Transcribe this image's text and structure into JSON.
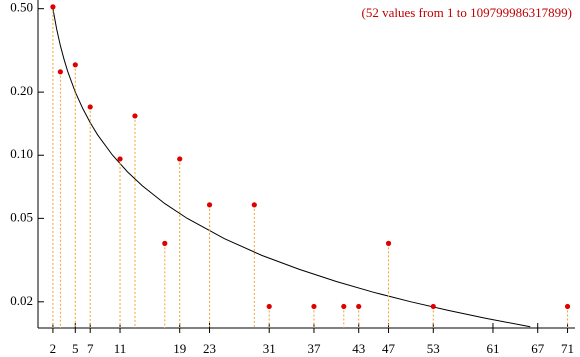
{
  "chart_data": {
    "type": "scatter",
    "annotation": "(52 values from  1 to  109799986317899)",
    "x": [
      2,
      3,
      5,
      7,
      11,
      13,
      17,
      19,
      23,
      29,
      31,
      37,
      41,
      43,
      47,
      53,
      71
    ],
    "values": [
      0.51,
      0.25,
      0.27,
      0.17,
      0.096,
      0.154,
      0.038,
      0.096,
      0.058,
      0.058,
      0.019,
      0.019,
      0.019,
      0.019,
      0.038,
      0.019,
      0.019
    ],
    "color": "#e00000",
    "stem_color": "#f0a030",
    "curve": {
      "x": [
        2,
        2.5,
        3,
        3.5,
        4,
        5,
        6,
        7,
        8,
        10,
        12,
        14,
        17,
        20,
        25,
        30,
        35,
        40,
        45,
        50,
        55,
        60,
        66
      ],
      "values": [
        0.5,
        0.4,
        0.333,
        0.286,
        0.25,
        0.2,
        0.167,
        0.143,
        0.125,
        0.1,
        0.0833,
        0.0714,
        0.0588,
        0.05,
        0.04,
        0.0333,
        0.0286,
        0.025,
        0.0222,
        0.02,
        0.0182,
        0.0167,
        0.0152
      ],
      "color": "#000000"
    },
    "xlim": [
      0,
      72
    ],
    "ylim": [
      0.015,
      0.55
    ],
    "log_y": true,
    "xticks": [
      2,
      5,
      7,
      11,
      19,
      23,
      31,
      37,
      43,
      47,
      53,
      61,
      67,
      71
    ],
    "yticks": [
      0.02,
      0.05,
      {
        "value": 0.1,
        "label": "0.10"
      },
      {
        "value": 0.2,
        "label": "0.20"
      },
      {
        "value": 0.5,
        "label": "0.50"
      }
    ]
  }
}
